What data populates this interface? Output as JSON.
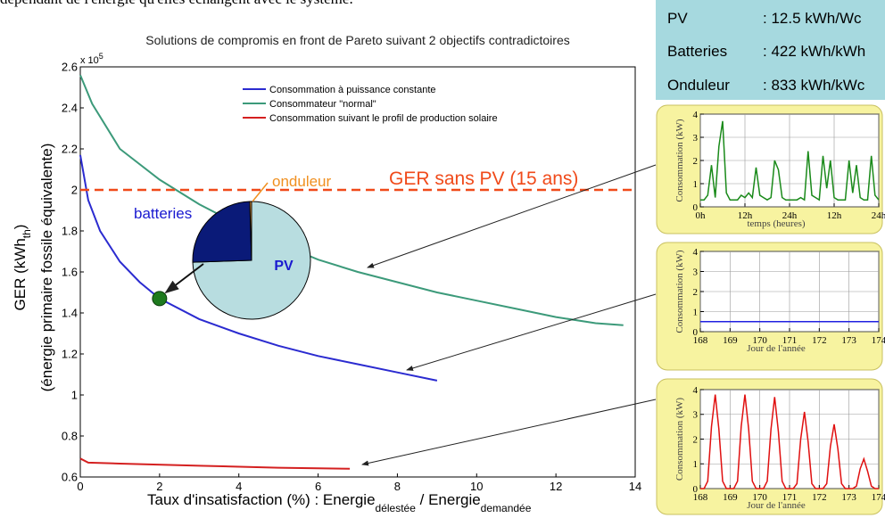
{
  "header_text": "dépendant de l'énergie qu'elles échangent avec le système.",
  "info_box": {
    "rows": [
      [
        "PV",
        ": 12.5 kWh/Wc"
      ],
      [
        "Batteries",
        ": 422 kWh/kWh"
      ],
      [
        "Onduleur",
        ": 833 kWh/kWc"
      ]
    ]
  },
  "chart_data": [
    {
      "type": "line",
      "title": "Solutions de compromis en front de Pareto suivant 2 objectifs contradictoires",
      "xlabel": [
        "Taux d'insatisfaction (%)  : Energie",
        "délestée",
        " / Energie",
        "demandée"
      ],
      "ylabel": [
        "GER  (kWh",
        "th",
        ")"
      ],
      "ylabel2": "(énergie primaire fossile équivalente)",
      "y_exponent_label": [
        "x 10",
        "5"
      ],
      "xlim": [
        0,
        14
      ],
      "xticks": [
        0,
        2,
        4,
        6,
        8,
        10,
        12,
        14
      ],
      "ylim": [
        0.6,
        2.6
      ],
      "yticks": [
        0.6,
        0.8,
        1,
        1.2,
        1.4,
        1.6,
        1.8,
        2,
        2.2,
        2.4,
        2.6
      ],
      "series": [
        {
          "name": "Consommation à puissance constante",
          "color": "#2b2bd0",
          "x": [
            0,
            0.2,
            0.5,
            1,
            1.5,
            2,
            3,
            4,
            5,
            6,
            7,
            8,
            9
          ],
          "values": [
            2.17,
            1.95,
            1.8,
            1.65,
            1.55,
            1.47,
            1.37,
            1.3,
            1.24,
            1.19,
            1.15,
            1.11,
            1.07
          ]
        },
        {
          "name": "Consommateur \"normal\"",
          "color": "#3c9a7a",
          "x": [
            0,
            0.3,
            1,
            2,
            3,
            4,
            5,
            6,
            7,
            8,
            9,
            10,
            11,
            12,
            13,
            13.7
          ],
          "values": [
            2.56,
            2.42,
            2.2,
            2.05,
            1.93,
            1.83,
            1.74,
            1.66,
            1.6,
            1.55,
            1.5,
            1.46,
            1.42,
            1.38,
            1.35,
            1.34
          ]
        },
        {
          "name": "Consommation suivant le profil de production solaire",
          "color": "#d42020",
          "x": [
            0,
            0.2,
            1,
            3,
            5,
            6.8
          ],
          "values": [
            0.69,
            0.67,
            0.665,
            0.655,
            0.645,
            0.64
          ]
        }
      ],
      "reference_line": {
        "label": "GER sans PV (15 ans)",
        "value": 2,
        "color": "#f04a1a"
      },
      "highlight_point": {
        "x": 2,
        "y": 1.47,
        "color": "#1e7a1e"
      }
    },
    {
      "type": "pie",
      "categories": [
        "PV",
        "batteries",
        "onduleur"
      ],
      "values": [
        74.5,
        25,
        0.5
      ],
      "colors": [
        "#b8dde0",
        "#0a1a78",
        "#f0a040"
      ]
    },
    {
      "type": "line",
      "ylabel": "Consommation (kW)",
      "xlabel": "temps (heures)",
      "grid": true,
      "xlim": [
        0,
        48
      ],
      "xticks": [
        {
          "value": 0,
          "label": "0h"
        },
        {
          "value": 12,
          "label": "12h"
        },
        {
          "value": 24,
          "label": "24h"
        },
        {
          "value": 36,
          "label": "12h"
        },
        {
          "value": 48,
          "label": "24h"
        }
      ],
      "ylim": [
        0,
        4
      ],
      "yticks": [
        0,
        1,
        2,
        3,
        4
      ],
      "series": [
        {
          "color": "#1a8a1a",
          "x": [
            0,
            1,
            2,
            3,
            4,
            5,
            6,
            7,
            8,
            9,
            10,
            11,
            12,
            13,
            14,
            15,
            16,
            17,
            18,
            19,
            20,
            21,
            22,
            23,
            24,
            25,
            26,
            27,
            28,
            29,
            30,
            31,
            32,
            33,
            34,
            35,
            36,
            37,
            38,
            39,
            40,
            41,
            42,
            43,
            44,
            45,
            46,
            47,
            48
          ],
          "values": [
            0.3,
            0.3,
            0.5,
            1.8,
            0.4,
            2.6,
            3.7,
            0.6,
            0.3,
            0.3,
            0.3,
            0.5,
            0.4,
            0.6,
            0.4,
            1.7,
            0.5,
            0.4,
            0.3,
            0.4,
            2.0,
            1.6,
            0.4,
            0.3,
            0.3,
            0.3,
            0.3,
            0.4,
            0.3,
            2.4,
            0.5,
            0.4,
            0.3,
            2.2,
            0.8,
            2.0,
            0.4,
            0.3,
            0.3,
            0.3,
            2.0,
            0.6,
            1.8,
            0.4,
            0.3,
            0.3,
            2.2,
            0.5,
            0.3
          ]
        }
      ]
    },
    {
      "type": "line",
      "ylabel": "Consommation (kW)",
      "xlabel": "Jour de l'année",
      "grid": true,
      "xlim": [
        168,
        174
      ],
      "xticks": [
        168,
        169,
        170,
        171,
        172,
        173,
        174
      ],
      "ylim": [
        0,
        4
      ],
      "yticks": [
        0,
        1,
        2,
        3,
        4
      ],
      "series": [
        {
          "color": "#2020e0",
          "x": [
            168,
            174
          ],
          "values": [
            0.5,
            0.5
          ]
        }
      ]
    },
    {
      "type": "line",
      "ylabel": "Consommation (kW)",
      "xlabel": "Jour de l'année",
      "grid": true,
      "xlim": [
        168,
        174
      ],
      "xticks": [
        168,
        169,
        170,
        171,
        172,
        173,
        174
      ],
      "ylim": [
        0,
        4
      ],
      "yticks": [
        0,
        1,
        2,
        3,
        4
      ],
      "series": [
        {
          "color": "#e01010",
          "x": [
            168,
            168.125,
            168.25,
            168.375,
            168.5,
            168.625,
            168.75,
            168.875,
            169,
            169.125,
            169.25,
            169.375,
            169.5,
            169.625,
            169.75,
            169.875,
            170,
            170.125,
            170.25,
            170.375,
            170.5,
            170.625,
            170.75,
            170.875,
            171,
            171.125,
            171.25,
            171.375,
            171.5,
            171.625,
            171.75,
            171.875,
            172,
            172.125,
            172.25,
            172.375,
            172.5,
            172.625,
            172.75,
            172.875,
            173,
            173.125,
            173.25,
            173.375,
            173.5,
            173.625,
            173.75,
            173.875,
            174
          ],
          "values": [
            0,
            0,
            0.3,
            2.5,
            3.8,
            2.4,
            0.3,
            0,
            0,
            0,
            0.3,
            2.5,
            3.8,
            2.4,
            0.3,
            0,
            0,
            0,
            0.3,
            2.4,
            3.7,
            2.3,
            0.3,
            0,
            0,
            0,
            0.2,
            2.0,
            3.1,
            1.9,
            0.2,
            0,
            0,
            0,
            0.2,
            1.7,
            2.6,
            1.6,
            0.2,
            0,
            0,
            0,
            0.1,
            0.8,
            1.2,
            0.7,
            0.1,
            0,
            0
          ]
        }
      ]
    }
  ]
}
